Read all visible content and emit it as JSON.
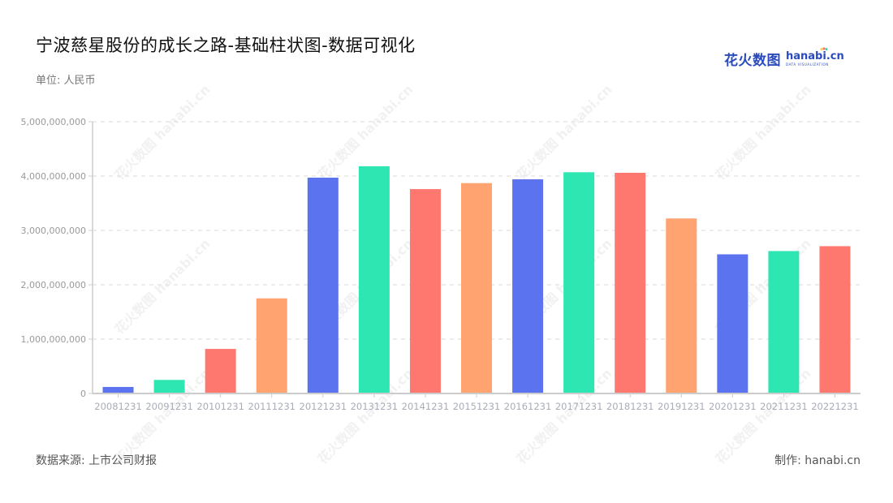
{
  "header": {
    "title": "宁波慈星股份的成长之路-基础柱状图-数据可视化",
    "unit": "单位: 人民币"
  },
  "logo": {
    "cn": "花火数图",
    "en": "hanabi.cn",
    "sub": "DATA VISUALIZATION"
  },
  "footer": {
    "source": "数据来源: 上市公司财报",
    "credit": "制作: hanabi.cn"
  },
  "watermark_text": "花火数图 hanabi.cn",
  "colors": {
    "palette": [
      "#5b73ee",
      "#2ee6b2",
      "#ff7870",
      "#ffa371"
    ],
    "grid": "#e6e6e6",
    "axis": "#cccccc"
  },
  "chart_data": {
    "type": "bar",
    "title": "宁波慈星股份的成长之路-基础柱状图-数据可视化",
    "subtitle": "单位: 人民币",
    "xlabel": "",
    "ylabel": "",
    "ylim": [
      0,
      5000000000
    ],
    "yticks": [
      0,
      1000000000,
      2000000000,
      3000000000,
      4000000000,
      5000000000
    ],
    "ytick_labels": [
      "0",
      "1,000,000,000",
      "2,000,000,000",
      "3,000,000,000",
      "4,000,000,000",
      "5,000,000,000"
    ],
    "grid": true,
    "legend": "none",
    "categories": [
      "20081231",
      "20091231",
      "20101231",
      "20111231",
      "20121231",
      "20131231",
      "20141231",
      "20151231",
      "20161231",
      "20171231",
      "20181231",
      "20191231",
      "20201231",
      "20211231",
      "20221231"
    ],
    "values": [
      120000000,
      250000000,
      820000000,
      1750000000,
      3970000000,
      4180000000,
      3760000000,
      3870000000,
      3940000000,
      4070000000,
      4060000000,
      3220000000,
      2560000000,
      2620000000,
      2710000000
    ],
    "bar_colors": [
      "#5b73ee",
      "#2ee6b2",
      "#ff7870",
      "#ffa371",
      "#5b73ee",
      "#2ee6b2",
      "#ff7870",
      "#ffa371",
      "#5b73ee",
      "#2ee6b2",
      "#ff7870",
      "#ffa371",
      "#5b73ee",
      "#2ee6b2",
      "#ff7870"
    ],
    "source": "数据来源: 上市公司财报"
  }
}
